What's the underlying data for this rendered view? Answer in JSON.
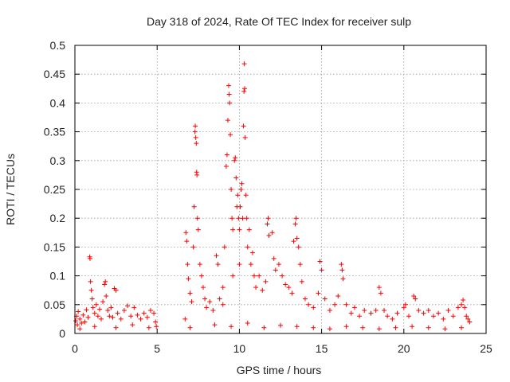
{
  "chart_data": {
    "type": "scatter",
    "title": "Day 318 of 2024, Rate Of TEC Index for receiver sulp",
    "xlabel": "GPS time / hours",
    "ylabel": "ROTI / TECUs",
    "xlim": [
      0,
      25
    ],
    "ylim": [
      0,
      0.5
    ],
    "xticks": [
      0,
      5,
      10,
      15,
      20,
      25
    ],
    "xtick_labels": [
      "0",
      "5",
      "10",
      "15",
      "20",
      "25"
    ],
    "yticks": [
      0,
      0.05,
      0.1,
      0.15,
      0.2,
      0.25,
      0.3,
      0.35,
      0.4,
      0.45,
      0.5
    ],
    "ytick_labels": [
      "0",
      "0.05",
      "0.1",
      "0.15",
      "0.2",
      "0.25",
      "0.3",
      "0.35",
      "0.4",
      "0.45",
      "0.5"
    ],
    "grid": true,
    "marker": "+",
    "color": "#ff0000",
    "series": [
      {
        "name": "ROTI",
        "points": [
          [
            0.05,
            0.022
          ],
          [
            0.1,
            0.03
          ],
          [
            0.15,
            0.015
          ],
          [
            0.2,
            0.038
          ],
          [
            0.3,
            0.025
          ],
          [
            0.4,
            0.018
          ],
          [
            0.5,
            0.032
          ],
          [
            0.6,
            0.02
          ],
          [
            0.7,
            0.041
          ],
          [
            0.8,
            0.028
          ],
          [
            0.9,
            0.133
          ],
          [
            0.92,
            0.13
          ],
          [
            0.95,
            0.09
          ],
          [
            1.0,
            0.075
          ],
          [
            1.05,
            0.06
          ],
          [
            1.1,
            0.045
          ],
          [
            1.2,
            0.035
          ],
          [
            1.3,
            0.05
          ],
          [
            1.4,
            0.03
          ],
          [
            1.5,
            0.042
          ],
          [
            1.6,
            0.025
          ],
          [
            1.7,
            0.055
          ],
          [
            1.8,
            0.085
          ],
          [
            1.85,
            0.09
          ],
          [
            1.9,
            0.065
          ],
          [
            2.0,
            0.04
          ],
          [
            2.1,
            0.03
          ],
          [
            2.2,
            0.045
          ],
          [
            2.3,
            0.028
          ],
          [
            2.4,
            0.078
          ],
          [
            2.5,
            0.075
          ],
          [
            2.6,
            0.035
          ],
          [
            2.8,
            0.025
          ],
          [
            3.0,
            0.04
          ],
          [
            3.2,
            0.048
          ],
          [
            3.4,
            0.03
          ],
          [
            3.6,
            0.045
          ],
          [
            3.8,
            0.032
          ],
          [
            4.0,
            0.025
          ],
          [
            4.2,
            0.035
          ],
          [
            4.4,
            0.028
          ],
          [
            4.6,
            0.04
          ],
          [
            4.8,
            0.035
          ],
          [
            4.9,
            0.02
          ],
          [
            0.3,
            0.008
          ],
          [
            1.2,
            0.012
          ],
          [
            2.5,
            0.01
          ],
          [
            3.5,
            0.015
          ],
          [
            4.5,
            0.01
          ],
          [
            4.95,
            0.012
          ],
          [
            6.7,
            0.025
          ],
          [
            6.75,
            0.175
          ],
          [
            6.8,
            0.16
          ],
          [
            6.85,
            0.12
          ],
          [
            6.9,
            0.095
          ],
          [
            7.0,
            0.07
          ],
          [
            7.1,
            0.055
          ],
          [
            7.2,
            0.15
          ],
          [
            7.25,
            0.22
          ],
          [
            7.3,
            0.35
          ],
          [
            7.32,
            0.36
          ],
          [
            7.35,
            0.34
          ],
          [
            7.38,
            0.33
          ],
          [
            7.4,
            0.28
          ],
          [
            7.42,
            0.275
          ],
          [
            7.45,
            0.2
          ],
          [
            7.5,
            0.18
          ],
          [
            7.6,
            0.12
          ],
          [
            7.7,
            0.1
          ],
          [
            7.8,
            0.08
          ],
          [
            7.9,
            0.06
          ],
          [
            8.0,
            0.045
          ],
          [
            8.2,
            0.055
          ],
          [
            8.4,
            0.04
          ],
          [
            8.6,
            0.135
          ],
          [
            8.7,
            0.12
          ],
          [
            8.8,
            0.06
          ],
          [
            9.0,
            0.08
          ],
          [
            9.1,
            0.15
          ],
          [
            9.2,
            0.29
          ],
          [
            9.25,
            0.31
          ],
          [
            9.3,
            0.37
          ],
          [
            9.35,
            0.43
          ],
          [
            9.38,
            0.415
          ],
          [
            9.4,
            0.4
          ],
          [
            9.45,
            0.345
          ],
          [
            9.5,
            0.25
          ],
          [
            9.55,
            0.2
          ],
          [
            9.6,
            0.18
          ],
          [
            9.7,
            0.3
          ],
          [
            9.75,
            0.305
          ],
          [
            9.8,
            0.27
          ],
          [
            9.85,
            0.22
          ],
          [
            9.9,
            0.24
          ],
          [
            9.95,
            0.2
          ],
          [
            10.0,
            0.18
          ],
          [
            10.05,
            0.22
          ],
          [
            10.1,
            0.25
          ],
          [
            10.15,
            0.26
          ],
          [
            10.2,
            0.2
          ],
          [
            10.25,
            0.36
          ],
          [
            10.28,
            0.42
          ],
          [
            10.3,
            0.468
          ],
          [
            10.32,
            0.425
          ],
          [
            10.35,
            0.34
          ],
          [
            10.4,
            0.24
          ],
          [
            10.45,
            0.2
          ],
          [
            10.5,
            0.15
          ],
          [
            10.6,
            0.18
          ],
          [
            10.7,
            0.12
          ],
          [
            10.8,
            0.14
          ],
          [
            10.9,
            0.1
          ],
          [
            11.0,
            0.08
          ],
          [
            11.2,
            0.1
          ],
          [
            11.4,
            0.075
          ],
          [
            11.6,
            0.09
          ],
          [
            11.7,
            0.19
          ],
          [
            11.75,
            0.2
          ],
          [
            11.8,
            0.17
          ],
          [
            12.0,
            0.175
          ],
          [
            12.1,
            0.13
          ],
          [
            12.2,
            0.11
          ],
          [
            12.4,
            0.12
          ],
          [
            12.6,
            0.1
          ],
          [
            12.8,
            0.085
          ],
          [
            13.0,
            0.08
          ],
          [
            13.2,
            0.07
          ],
          [
            13.3,
            0.16
          ],
          [
            13.4,
            0.19
          ],
          [
            13.45,
            0.2
          ],
          [
            13.5,
            0.165
          ],
          [
            13.6,
            0.15
          ],
          [
            13.7,
            0.12
          ],
          [
            13.8,
            0.09
          ],
          [
            14.0,
            0.06
          ],
          [
            14.2,
            0.05
          ],
          [
            14.5,
            0.045
          ],
          [
            14.8,
            0.07
          ],
          [
            14.9,
            0.125
          ],
          [
            15.0,
            0.11
          ],
          [
            15.2,
            0.06
          ],
          [
            15.5,
            0.04
          ],
          [
            15.8,
            0.05
          ],
          [
            16.0,
            0.065
          ],
          [
            16.2,
            0.12
          ],
          [
            16.25,
            0.11
          ],
          [
            16.3,
            0.095
          ],
          [
            16.5,
            0.05
          ],
          [
            16.8,
            0.035
          ],
          [
            17.0,
            0.045
          ],
          [
            17.3,
            0.03
          ],
          [
            17.6,
            0.04
          ],
          [
            18.0,
            0.035
          ],
          [
            18.3,
            0.04
          ],
          [
            18.5,
            0.08
          ],
          [
            18.6,
            0.07
          ],
          [
            18.8,
            0.04
          ],
          [
            19.0,
            0.03
          ],
          [
            19.3,
            0.025
          ],
          [
            19.6,
            0.035
          ],
          [
            20.0,
            0.045
          ],
          [
            20.1,
            0.05
          ],
          [
            20.3,
            0.03
          ],
          [
            20.6,
            0.065
          ],
          [
            20.7,
            0.06
          ],
          [
            20.9,
            0.04
          ],
          [
            21.2,
            0.035
          ],
          [
            21.5,
            0.04
          ],
          [
            21.8,
            0.03
          ],
          [
            22.1,
            0.035
          ],
          [
            22.4,
            0.025
          ],
          [
            22.7,
            0.04
          ],
          [
            23.0,
            0.03
          ],
          [
            23.3,
            0.045
          ],
          [
            23.5,
            0.05
          ],
          [
            23.6,
            0.058
          ],
          [
            23.7,
            0.045
          ],
          [
            23.8,
            0.03
          ],
          [
            23.9,
            0.025
          ],
          [
            24.0,
            0.02
          ],
          [
            7.0,
            0.01
          ],
          [
            8.5,
            0.015
          ],
          [
            9.5,
            0.012
          ],
          [
            10.5,
            0.018
          ],
          [
            11.5,
            0.01
          ],
          [
            12.5,
            0.014
          ],
          [
            13.5,
            0.012
          ],
          [
            14.5,
            0.01
          ],
          [
            15.5,
            0.008
          ],
          [
            16.5,
            0.012
          ],
          [
            17.5,
            0.01
          ],
          [
            18.5,
            0.008
          ],
          [
            19.5,
            0.01
          ],
          [
            20.5,
            0.012
          ],
          [
            21.5,
            0.01
          ],
          [
            22.5,
            0.008
          ],
          [
            23.5,
            0.01
          ],
          [
            9.0,
            0.05
          ],
          [
            9.6,
            0.1
          ],
          [
            10.0,
            0.12
          ]
        ]
      }
    ]
  }
}
